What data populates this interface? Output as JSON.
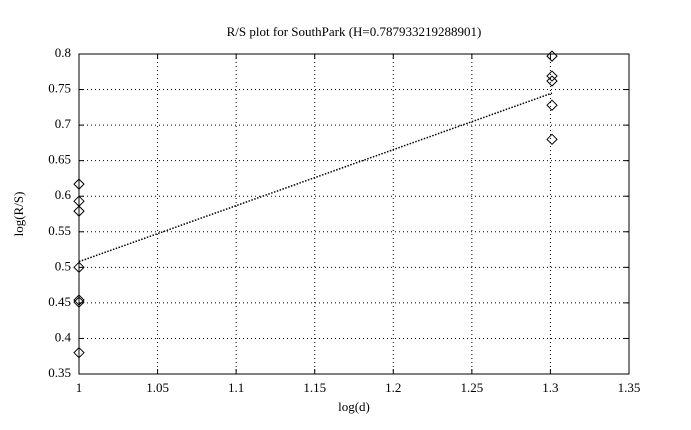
{
  "chart_data": {
    "type": "scatter",
    "title": "R/S plot for SouthPark (H=0.787933219288901)",
    "x_label": "log(d)",
    "y_label": "log(R/S)",
    "xlim": [
      1,
      1.35
    ],
    "xticks": [
      1,
      1.05,
      1.1,
      1.15,
      1.2,
      1.25,
      1.3,
      1.35
    ],
    "ylim": [
      0.35,
      0.8
    ],
    "yticks": [
      0.35,
      0.4,
      0.45,
      0.5,
      0.55,
      0.6,
      0.65,
      0.7,
      0.75,
      0.8
    ],
    "grid": true,
    "series": [
      {
        "color": "#000000",
        "marker": "diamond",
        "x": [
          1,
          1,
          1,
          1,
          1,
          1,
          1,
          1.301,
          1.301,
          1.301,
          1.301,
          1.301
        ],
        "values": [
          0.617,
          0.593,
          0.579,
          0.5,
          0.454,
          0.451,
          0.38,
          0.797,
          0.769,
          0.762,
          0.728,
          0.68
        ]
      },
      {
        "color": "#000000",
        "line_style": "dotted",
        "x": [
          1,
          1.301
        ],
        "values": [
          0.508,
          0.745
        ]
      }
    ]
  }
}
